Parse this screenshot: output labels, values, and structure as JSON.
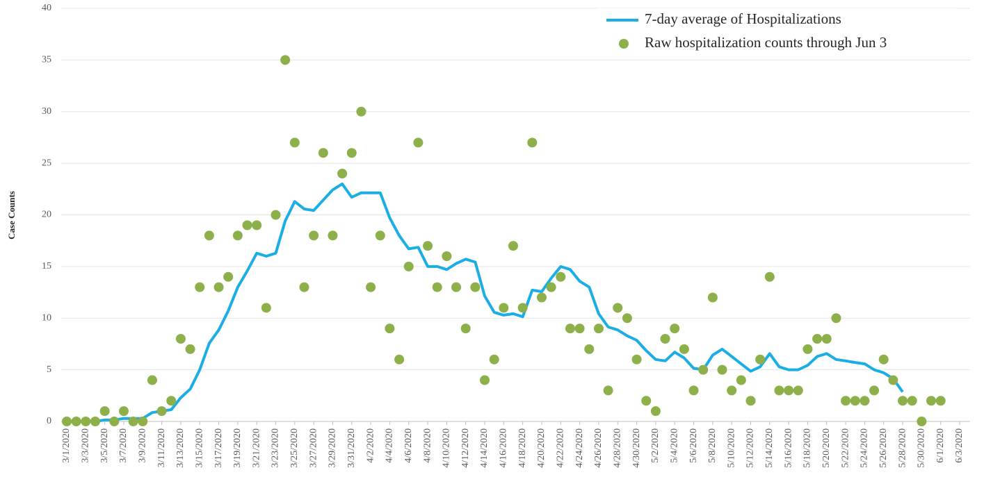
{
  "chart_data": {
    "type": "line",
    "y_label": "Case Counts",
    "categories": [
      "3/1/2020",
      null,
      "3/3/2020",
      null,
      "3/5/2020",
      null,
      "3/7/2020",
      null,
      "3/9/2020",
      null,
      "3/11/2020",
      null,
      "3/13/2020",
      null,
      "3/15/2020",
      null,
      "3/17/2020",
      null,
      "3/19/2020",
      null,
      "3/21/2020",
      null,
      "3/23/2020",
      null,
      "3/25/2020",
      null,
      "3/27/2020",
      null,
      "3/29/2020",
      null,
      "3/31/2020",
      null,
      "4/2/2020",
      null,
      "4/4/2020",
      null,
      "4/6/2020",
      null,
      "4/8/2020",
      null,
      "4/10/2020",
      null,
      "4/12/2020",
      null,
      "4/14/2020",
      null,
      "4/16/2020",
      null,
      "4/18/2020",
      null,
      "4/20/2020",
      null,
      "4/22/2020",
      null,
      "4/24/2020",
      null,
      "4/26/2020",
      null,
      "4/28/2020",
      null,
      "4/30/2020",
      null,
      "5/2/2020",
      null,
      "5/4/2020",
      null,
      "5/6/2020",
      null,
      "5/8/2020",
      null,
      "5/10/2020",
      null,
      "5/12/2020",
      null,
      "5/14/2020",
      null,
      "5/16/2020",
      null,
      "5/18/2020",
      null,
      "5/20/2020",
      null,
      "5/22/2020",
      null,
      "5/24/2020",
      null,
      "5/26/2020",
      null,
      "5/28/2020",
      null,
      "5/30/2020",
      null,
      "6/1/2020",
      null,
      "6/3/2020"
    ],
    "series": [
      {
        "name": "7-day average of Hospitalizations",
        "type": "line",
        "color": "#1aaee5",
        "values": [
          0,
          0,
          0,
          0,
          0.14,
          0.14,
          0.29,
          0.29,
          0.29,
          0.86,
          1.0,
          1.14,
          2.29,
          3.14,
          5.0,
          7.57,
          8.86,
          10.71,
          13.0,
          14.57,
          16.29,
          16.0,
          16.29,
          19.43,
          21.29,
          20.57,
          20.43,
          21.43,
          22.43,
          23.0,
          21.71,
          22.14,
          22.14,
          22.14,
          19.71,
          18.0,
          16.71,
          16.86,
          15.0,
          15.0,
          14.71,
          15.29,
          15.71,
          15.43,
          12.14,
          10.57,
          10.29,
          10.43,
          10.14,
          12.71,
          12.57,
          13.86,
          15.0,
          14.71,
          13.57,
          13.0,
          10.43,
          9.14,
          8.86,
          8.29,
          7.86,
          6.86,
          6.0,
          5.86,
          6.71,
          6.14,
          5.14,
          5.0,
          6.43,
          7.0,
          6.29,
          5.57,
          4.86,
          5.29,
          6.57,
          5.29,
          5.0,
          5.0,
          5.43,
          6.29,
          6.57,
          6.0,
          5.86,
          5.71,
          5.57,
          5.0,
          4.71,
          4.14,
          2.86,
          null,
          null,
          null,
          null,
          null,
          null
        ]
      },
      {
        "name": "Raw hospitalization counts through Jun 3",
        "type": "scatter",
        "color": "#8db04a",
        "values": [
          0,
          0,
          0,
          0,
          1,
          0,
          1,
          0,
          0,
          4,
          1,
          2,
          8,
          7,
          13,
          18,
          13,
          14,
          18,
          19,
          19,
          11,
          20,
          35,
          27,
          13,
          18,
          26,
          18,
          24,
          26,
          30,
          13,
          18,
          9,
          6,
          15,
          27,
          17,
          13,
          16,
          13,
          9,
          13,
          4,
          6,
          11,
          17,
          11,
          27,
          12,
          13,
          14,
          9,
          9,
          7,
          9,
          3,
          11,
          10,
          6,
          2,
          1,
          8,
          9,
          7,
          3,
          5,
          12,
          5,
          3,
          4,
          2,
          6,
          14,
          3,
          3,
          3,
          7,
          8,
          8,
          10,
          2,
          2,
          2,
          3,
          6,
          4,
          2,
          2,
          0,
          2,
          2,
          null,
          null
        ]
      }
    ],
    "ylim": [
      0,
      40
    ],
    "yticks": [
      0,
      5,
      10,
      15,
      20,
      25,
      30,
      35,
      40
    ],
    "grid": true
  }
}
